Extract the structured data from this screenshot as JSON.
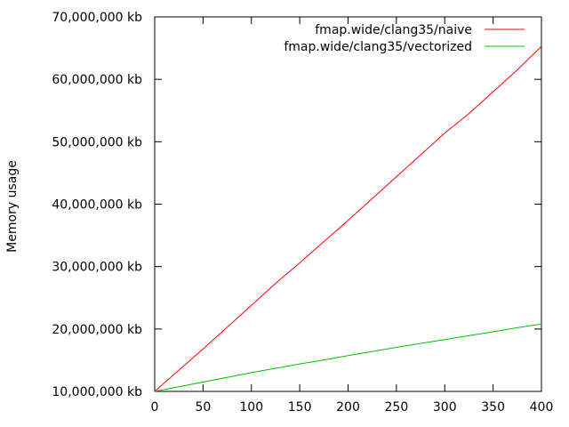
{
  "chart_data": {
    "type": "line",
    "title": "",
    "xlabel": "",
    "ylabel": "Memory usage",
    "xlim": [
      0,
      400
    ],
    "ylim": [
      10000000,
      70000000
    ],
    "xticks": [
      0,
      50,
      100,
      150,
      200,
      250,
      300,
      350,
      400
    ],
    "xtick_labels": [
      "0",
      "50",
      "100",
      "150",
      "200",
      "250",
      "300",
      "350",
      "400"
    ],
    "yticks": [
      10000000,
      20000000,
      30000000,
      40000000,
      50000000,
      60000000,
      70000000
    ],
    "ytick_labels": [
      "10,000,000 kb",
      "20,000,000 kb",
      "30,000,000 kb",
      "40,000,000 kb",
      "50,000,000 kb",
      "60,000,000 kb",
      "70,000,000 kb"
    ],
    "grid": false,
    "legend_position": "top-right",
    "series": [
      {
        "name": "fmap.wide/clang35/naive",
        "color": "#ff0000",
        "x": [
          0,
          25,
          50,
          75,
          100,
          125,
          150,
          175,
          200,
          225,
          250,
          275,
          300,
          325,
          350,
          375,
          400
        ],
        "y": [
          10000000,
          13400000,
          16800000,
          20300000,
          23800000,
          27300000,
          30600000,
          34000000,
          37400000,
          40900000,
          44400000,
          47900000,
          51400000,
          54500000,
          58000000,
          61500000,
          65300000
        ]
      },
      {
        "name": "fmap.wide/clang35/vectorized",
        "color": "#00c000",
        "x": [
          0,
          25,
          50,
          75,
          100,
          125,
          150,
          175,
          200,
          225,
          250,
          275,
          300,
          325,
          350,
          375,
          400
        ],
        "y": [
          10000000,
          10750000,
          11500000,
          12250000,
          13000000,
          13700000,
          14400000,
          15050000,
          15750000,
          16400000,
          17050000,
          17700000,
          18300000,
          18950000,
          19550000,
          20200000,
          20800000
        ]
      }
    ]
  }
}
